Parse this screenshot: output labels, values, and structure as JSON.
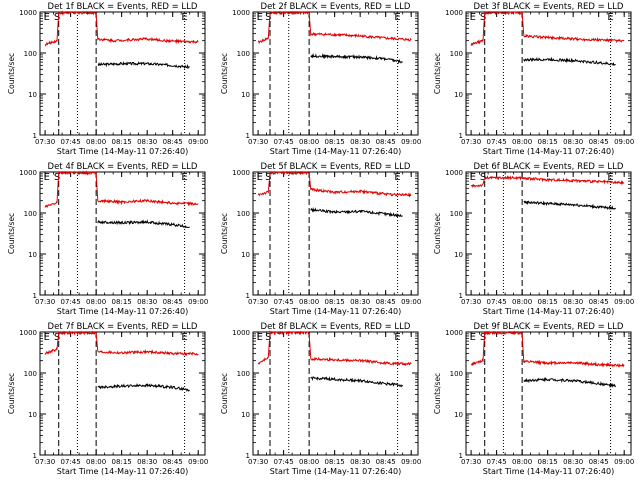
{
  "page": {
    "background": "#ffffff",
    "black_color": "#000000",
    "red_color": "#e00000"
  },
  "chart_data": [
    {
      "type": "line",
      "title": "Det 1f BLACK = Events, RED = LLD",
      "xlabel": "Start Time (14-May-11 07:26:40)",
      "ylabel": "Counts/sec",
      "ylim": [
        1,
        1000
      ],
      "yscale": "log",
      "x_ticks": [
        "07:30",
        "07:45",
        "08:00",
        "08:15",
        "08:30",
        "08:45",
        "09:00"
      ],
      "y_ticks": [
        "1",
        "10",
        "100",
        "1000"
      ],
      "markers": [
        {
          "label": "E",
          "at": "07:31"
        },
        {
          "label": "S",
          "at": "07:37"
        },
        {
          "label": "E",
          "at": "08:52"
        }
      ],
      "dashed_lines": [
        "07:38",
        "08:00"
      ],
      "dotted_lines": [
        "07:49",
        "08:52"
      ],
      "series": [
        {
          "name": "Events",
          "color": "#000000",
          "x": [
            "08:01",
            "08:15",
            "08:30",
            "08:45",
            "08:55"
          ],
          "y": [
            52,
            55,
            55,
            50,
            45
          ]
        },
        {
          "name": "LLD",
          "color": "#e00000",
          "x": [
            "07:30",
            "07:37",
            "07:38",
            "08:00",
            "08:01",
            "08:10",
            "08:20",
            "08:30",
            "08:40",
            "08:50",
            "09:00"
          ],
          "y": [
            160,
            200,
            950,
            950,
            220,
            200,
            210,
            220,
            200,
            190,
            185
          ]
        }
      ]
    },
    {
      "type": "line",
      "title": "Det 2f BLACK = Events, RED = LLD",
      "xlabel": "Start Time (14-May-11 07:26:40)",
      "ylabel": "Counts/sec",
      "ylim": [
        1,
        1000
      ],
      "yscale": "log",
      "x_ticks": [
        "07:30",
        "07:45",
        "08:00",
        "08:15",
        "08:30",
        "08:45",
        "09:00"
      ],
      "y_ticks": [
        "1",
        "10",
        "100",
        "1000"
      ],
      "markers": [
        {
          "label": "E",
          "at": "07:31"
        },
        {
          "label": "S",
          "at": "07:36"
        },
        {
          "label": "E",
          "at": "08:52"
        }
      ],
      "dashed_lines": [
        "07:37",
        "08:00"
      ],
      "dotted_lines": [
        "07:48",
        "08:52"
      ],
      "series": [
        {
          "name": "Events",
          "color": "#000000",
          "x": [
            "08:01",
            "08:15",
            "08:30",
            "08:45",
            "08:55"
          ],
          "y": [
            85,
            82,
            80,
            72,
            60
          ]
        },
        {
          "name": "LLD",
          "color": "#e00000",
          "x": [
            "07:30",
            "07:36",
            "07:37",
            "08:00",
            "08:01",
            "08:15",
            "08:30",
            "08:45",
            "09:00"
          ],
          "y": [
            180,
            230,
            950,
            950,
            290,
            280,
            260,
            230,
            210
          ]
        }
      ]
    },
    {
      "type": "line",
      "title": "Det 3f BLACK = Events, RED = LLD",
      "xlabel": "Start Time (14-May-11 07:26:40)",
      "ylabel": "Counts/sec",
      "ylim": [
        1,
        1000
      ],
      "yscale": "log",
      "x_ticks": [
        "07:30",
        "07:45",
        "08:00",
        "08:15",
        "08:30",
        "08:45",
        "09:00"
      ],
      "y_ticks": [
        "1",
        "10",
        "100",
        "1000"
      ],
      "markers": [
        {
          "label": "E",
          "at": "07:31"
        },
        {
          "label": "S",
          "at": "07:37"
        },
        {
          "label": "E",
          "at": "08:52"
        }
      ],
      "dashed_lines": [
        "07:38",
        "08:00"
      ],
      "dotted_lines": [
        "07:49",
        "08:52"
      ],
      "series": [
        {
          "name": "Events",
          "color": "#000000",
          "x": [
            "08:01",
            "08:15",
            "08:30",
            "08:45",
            "08:55"
          ],
          "y": [
            68,
            70,
            65,
            58,
            52
          ]
        },
        {
          "name": "LLD",
          "color": "#e00000",
          "x": [
            "07:30",
            "07:37",
            "07:38",
            "08:00",
            "08:01",
            "08:15",
            "08:30",
            "08:45",
            "09:00"
          ],
          "y": [
            160,
            200,
            950,
            950,
            260,
            240,
            220,
            210,
            195
          ]
        }
      ]
    },
    {
      "type": "line",
      "title": "Det 4f BLACK = Events, RED = LLD",
      "xlabel": "Start Time (14-May-11 07:26:40)",
      "ylabel": "Counts/sec",
      "ylim": [
        1,
        1000
      ],
      "yscale": "log",
      "x_ticks": [
        "07:30",
        "07:45",
        "08:00",
        "08:15",
        "08:30",
        "08:45",
        "09:00"
      ],
      "y_ticks": [
        "1",
        "10",
        "100",
        "1000"
      ],
      "markers": [
        {
          "label": "E",
          "at": "07:31"
        },
        {
          "label": "S",
          "at": "07:37"
        },
        {
          "label": "E",
          "at": "08:52"
        }
      ],
      "dashed_lines": [
        "07:38",
        "08:00"
      ],
      "dotted_lines": [
        "07:49",
        "08:52"
      ],
      "series": [
        {
          "name": "Events",
          "color": "#000000",
          "x": [
            "08:01",
            "08:15",
            "08:30",
            "08:45",
            "08:55"
          ],
          "y": [
            60,
            58,
            60,
            52,
            45
          ]
        },
        {
          "name": "LLD",
          "color": "#e00000",
          "x": [
            "07:30",
            "07:37",
            "07:38",
            "08:00",
            "08:01",
            "08:15",
            "08:30",
            "08:45",
            "09:00"
          ],
          "y": [
            140,
            180,
            950,
            950,
            200,
            185,
            200,
            175,
            165
          ]
        }
      ]
    },
    {
      "type": "line",
      "title": "Det 5f BLACK = Events, RED = LLD",
      "xlabel": "Start Time (14-May-11 07:26:40)",
      "ylabel": "Counts/sec",
      "ylim": [
        1,
        1000
      ],
      "yscale": "log",
      "x_ticks": [
        "07:30",
        "07:45",
        "08:00",
        "08:15",
        "08:30",
        "08:45",
        "09:00"
      ],
      "y_ticks": [
        "1",
        "10",
        "100",
        "1000"
      ],
      "markers": [
        {
          "label": "E",
          "at": "07:31"
        },
        {
          "label": "S",
          "at": "07:36"
        },
        {
          "label": "E",
          "at": "08:52"
        }
      ],
      "dashed_lines": [
        "07:37",
        "08:00"
      ],
      "dotted_lines": [
        "07:48",
        "08:52"
      ],
      "series": [
        {
          "name": "Events",
          "color": "#000000",
          "x": [
            "08:01",
            "08:15",
            "08:30",
            "08:45",
            "08:55"
          ],
          "y": [
            120,
            105,
            110,
            95,
            85
          ]
        },
        {
          "name": "LLD",
          "color": "#e00000",
          "x": [
            "07:30",
            "07:36",
            "07:37",
            "08:00",
            "08:01",
            "08:15",
            "08:30",
            "08:45",
            "09:00"
          ],
          "y": [
            280,
            320,
            950,
            950,
            380,
            320,
            340,
            290,
            270
          ]
        }
      ]
    },
    {
      "type": "line",
      "title": "Det 6f BLACK = Events, RED = LLD",
      "xlabel": "Start Time (14-May-11 07:26:40)",
      "ylabel": "Counts/sec",
      "ylim": [
        1,
        1000
      ],
      "yscale": "log",
      "x_ticks": [
        "07:30",
        "07:45",
        "08:00",
        "08:15",
        "08:30",
        "08:45",
        "09:00"
      ],
      "y_ticks": [
        "1",
        "10",
        "100",
        "1000"
      ],
      "markers": [
        {
          "label": "E",
          "at": "07:31"
        },
        {
          "label": "S",
          "at": "07:37"
        },
        {
          "label": "E",
          "at": "08:52"
        }
      ],
      "dashed_lines": [
        "07:38",
        "08:00"
      ],
      "dotted_lines": [
        "07:49",
        "08:52"
      ],
      "series": [
        {
          "name": "Events",
          "color": "#000000",
          "x": [
            "08:01",
            "08:15",
            "08:30",
            "08:45",
            "08:55"
          ],
          "y": [
            185,
            170,
            160,
            140,
            130
          ]
        },
        {
          "name": "LLD",
          "color": "#e00000",
          "x": [
            "07:30",
            "07:37",
            "07:38",
            "08:00",
            "08:01",
            "08:15",
            "08:30",
            "08:45",
            "09:00"
          ],
          "y": [
            450,
            480,
            720,
            720,
            700,
            650,
            620,
            580,
            540
          ]
        }
      ]
    },
    {
      "type": "line",
      "title": "Det 7f BLACK = Events, RED = LLD",
      "xlabel": "Start Time (14-May-11 07:26:40)",
      "ylabel": "Counts/sec",
      "ylim": [
        1,
        1000
      ],
      "yscale": "log",
      "x_ticks": [
        "07:30",
        "07:45",
        "08:00",
        "08:15",
        "08:30",
        "08:45",
        "09:00"
      ],
      "y_ticks": [
        "1",
        "10",
        "100",
        "1000"
      ],
      "markers": [
        {
          "label": "E",
          "at": "07:31"
        },
        {
          "label": "S",
          "at": "07:37"
        },
        {
          "label": "E",
          "at": "08:52"
        }
      ],
      "dashed_lines": [
        "07:38",
        "08:00"
      ],
      "dotted_lines": [
        "07:49",
        "08:52"
      ],
      "series": [
        {
          "name": "Events",
          "color": "#000000",
          "x": [
            "08:01",
            "08:15",
            "08:30",
            "08:45",
            "08:55"
          ],
          "y": [
            45,
            48,
            50,
            45,
            38
          ]
        },
        {
          "name": "LLD",
          "color": "#e00000",
          "x": [
            "07:30",
            "07:37",
            "07:38",
            "08:00",
            "08:01",
            "08:15",
            "08:30",
            "08:45",
            "09:00"
          ],
          "y": [
            300,
            380,
            950,
            950,
            330,
            310,
            330,
            300,
            290
          ]
        }
      ]
    },
    {
      "type": "line",
      "title": "Det 8f BLACK = Events, RED = LLD",
      "xlabel": "Start Time (14-May-11 07:26:40)",
      "ylabel": "Counts/sec",
      "ylim": [
        1,
        1000
      ],
      "yscale": "log",
      "x_ticks": [
        "07:30",
        "07:45",
        "08:00",
        "08:15",
        "08:30",
        "08:45",
        "09:00"
      ],
      "y_ticks": [
        "1",
        "10",
        "100",
        "1000"
      ],
      "markers": [
        {
          "label": "E",
          "at": "07:31"
        },
        {
          "label": "S",
          "at": "07:36"
        },
        {
          "label": "E",
          "at": "08:52"
        }
      ],
      "dashed_lines": [
        "07:37",
        "08:00"
      ],
      "dotted_lines": [
        "07:48",
        "08:52"
      ],
      "series": [
        {
          "name": "Events",
          "color": "#000000",
          "x": [
            "08:01",
            "08:15",
            "08:30",
            "08:45",
            "08:55"
          ],
          "y": [
            75,
            70,
            65,
            55,
            50
          ]
        },
        {
          "name": "LLD",
          "color": "#e00000",
          "x": [
            "07:30",
            "07:36",
            "07:37",
            "08:00",
            "08:01",
            "08:15",
            "08:30",
            "08:45",
            "09:00"
          ],
          "y": [
            170,
            240,
            950,
            950,
            220,
            210,
            200,
            175,
            165
          ]
        }
      ]
    },
    {
      "type": "line",
      "title": "Det 9f BLACK = Events, RED = LLD",
      "xlabel": "Start Time (14-May-11 07:26:40)",
      "ylabel": "Counts/sec",
      "ylim": [
        1,
        1000
      ],
      "yscale": "log",
      "x_ticks": [
        "07:30",
        "07:45",
        "08:00",
        "08:15",
        "08:30",
        "08:45",
        "09:00"
      ],
      "y_ticks": [
        "1",
        "10",
        "100",
        "1000"
      ],
      "markers": [
        {
          "label": "E",
          "at": "07:31"
        },
        {
          "label": "S",
          "at": "07:37"
        },
        {
          "label": "E",
          "at": "08:52"
        }
      ],
      "dashed_lines": [
        "07:38",
        "08:00"
      ],
      "dotted_lines": [
        "07:49",
        "08:52"
      ],
      "series": [
        {
          "name": "Events",
          "color": "#000000",
          "x": [
            "08:01",
            "08:15",
            "08:30",
            "08:45",
            "08:55"
          ],
          "y": [
            65,
            70,
            65,
            55,
            48
          ]
        },
        {
          "name": "LLD",
          "color": "#e00000",
          "x": [
            "07:30",
            "07:37",
            "07:38",
            "08:00",
            "08:01",
            "08:15",
            "08:30",
            "08:45",
            "09:00"
          ],
          "y": [
            160,
            200,
            950,
            950,
            190,
            175,
            180,
            160,
            150
          ]
        }
      ]
    }
  ]
}
